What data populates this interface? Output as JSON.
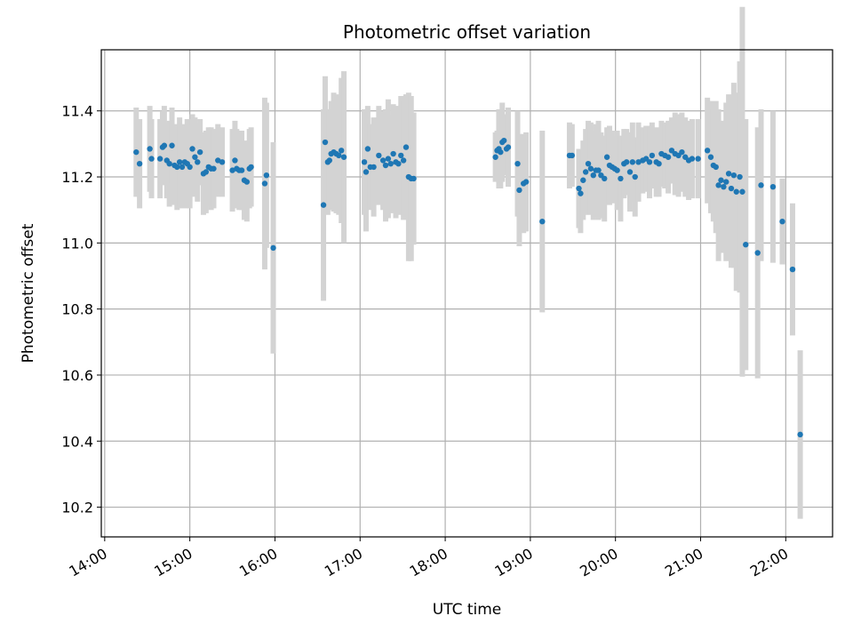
{
  "chart_data": {
    "type": "scatter",
    "title": "Photometric offset variation",
    "xlabel": "UTC time",
    "ylabel": "Photometric offset",
    "grid": true,
    "x_unit": "UTC hours",
    "xlim": [
      13.96,
      22.55
    ],
    "ylim": [
      10.11,
      11.585
    ],
    "x_ticks": [
      14,
      15,
      16,
      17,
      18,
      19,
      20,
      21,
      22
    ],
    "x_tick_labels": [
      "14:00",
      "15:00",
      "16:00",
      "17:00",
      "18:00",
      "19:00",
      "20:00",
      "21:00",
      "22:00"
    ],
    "y_ticks": [
      10.2,
      10.4,
      10.6,
      10.8,
      11.0,
      11.2,
      11.4
    ],
    "y_tick_labels": [
      "10.2",
      "10.4",
      "10.6",
      "10.8",
      "11.0",
      "11.2",
      "11.4"
    ],
    "marker_color": "#1f77b4",
    "errorbar_color": "#d3d3d3",
    "series": [
      {
        "x": [
          14.37,
          14.41,
          14.53,
          14.55,
          14.65,
          14.68,
          14.7,
          14.73,
          14.76,
          14.79,
          14.82,
          14.85,
          14.88,
          14.91,
          14.94,
          14.97,
          15.0,
          15.03,
          15.06,
          15.09,
          15.12,
          15.16,
          15.19,
          15.22,
          15.25,
          15.28,
          15.33,
          15.38,
          15.5,
          15.53,
          15.55,
          15.58,
          15.61,
          15.64,
          15.67,
          15.7,
          15.72,
          15.88,
          15.9,
          15.98
        ],
        "y": [
          11.275,
          11.24,
          11.285,
          11.255,
          11.255,
          11.29,
          11.295,
          11.25,
          11.24,
          11.295,
          11.235,
          11.23,
          11.245,
          11.23,
          11.245,
          11.24,
          11.23,
          11.285,
          11.26,
          11.245,
          11.275,
          11.21,
          11.215,
          11.23,
          11.225,
          11.225,
          11.25,
          11.245,
          11.22,
          11.25,
          11.225,
          11.22,
          11.22,
          11.19,
          11.185,
          11.225,
          11.23,
          11.18,
          11.205,
          10.985
        ],
        "err": [
          0.135,
          0.135,
          0.13,
          0.12,
          0.12,
          0.11,
          0.12,
          0.115,
          0.13,
          0.115,
          0.12,
          0.13,
          0.135,
          0.125,
          0.115,
          0.135,
          0.125,
          0.105,
          0.12,
          0.12,
          0.1,
          0.125,
          0.125,
          0.12,
          0.125,
          0.12,
          0.11,
          0.105,
          0.125,
          0.12,
          0.12,
          0.12,
          0.12,
          0.12,
          0.12,
          0.12,
          0.12,
          0.26,
          0.22,
          0.32
        ]
      },
      {
        "x": [
          16.57,
          16.59,
          16.62,
          16.64,
          16.66,
          16.69,
          16.72,
          16.75,
          16.78,
          16.81,
          17.05,
          17.07,
          17.09,
          17.12,
          17.16,
          17.22,
          17.27,
          17.3,
          17.33,
          17.36,
          17.39,
          17.42,
          17.45,
          17.48,
          17.51,
          17.54,
          17.57,
          17.6,
          17.63
        ],
        "y": [
          11.115,
          11.305,
          11.245,
          11.25,
          11.27,
          11.275,
          11.27,
          11.265,
          11.28,
          11.26,
          11.245,
          11.215,
          11.285,
          11.23,
          11.23,
          11.265,
          11.25,
          11.235,
          11.255,
          11.24,
          11.27,
          11.245,
          11.24,
          11.265,
          11.25,
          11.29,
          11.2,
          11.195,
          11.195
        ],
        "err": [
          0.29,
          0.2,
          0.16,
          0.15,
          0.16,
          0.18,
          0.18,
          0.18,
          0.22,
          0.26,
          0.16,
          0.18,
          0.13,
          0.13,
          0.15,
          0.15,
          0.15,
          0.17,
          0.18,
          0.15,
          0.15,
          0.17,
          0.15,
          0.18,
          0.18,
          0.16,
          0.255,
          0.25,
          0.2
        ]
      },
      {
        "x": [
          18.59,
          18.61,
          18.63,
          18.65,
          18.67,
          18.69,
          18.72,
          18.74,
          18.85,
          18.87,
          18.92,
          18.95,
          19.14
        ],
        "y": [
          11.26,
          11.28,
          11.285,
          11.275,
          11.305,
          11.31,
          11.285,
          11.29,
          11.24,
          11.16,
          11.18,
          11.185,
          11.065
        ],
        "err": [
          0.075,
          0.06,
          0.12,
          0.11,
          0.12,
          0.08,
          0.08,
          0.12,
          0.16,
          0.17,
          0.15,
          0.15,
          0.275
        ]
      },
      {
        "x": [
          19.46,
          19.49,
          19.57,
          19.59,
          19.62,
          19.65,
          19.68,
          19.71,
          19.74,
          19.77,
          19.8,
          19.83,
          19.87,
          19.9,
          19.93,
          19.96,
          19.99,
          20.02,
          20.06,
          20.1,
          20.13,
          20.17,
          20.2,
          20.23,
          20.27,
          20.32,
          20.36,
          20.4,
          20.43,
          20.48,
          20.51,
          20.54,
          20.58,
          20.62,
          20.66,
          20.7,
          20.74,
          20.78,
          20.82,
          20.86,
          20.9,
          20.97
        ],
        "y": [
          11.265,
          11.265,
          11.165,
          11.15,
          11.19,
          11.215,
          11.24,
          11.225,
          11.205,
          11.22,
          11.22,
          11.205,
          11.195,
          11.26,
          11.235,
          11.23,
          11.225,
          11.22,
          11.195,
          11.24,
          11.245,
          11.215,
          11.245,
          11.2,
          11.245,
          11.25,
          11.255,
          11.245,
          11.265,
          11.245,
          11.24,
          11.27,
          11.265,
          11.26,
          11.28,
          11.27,
          11.265,
          11.275,
          11.26,
          11.25,
          11.255,
          11.255
        ],
        "err": [
          0.1,
          0.095,
          0.12,
          0.12,
          0.12,
          0.13,
          0.13,
          0.14,
          0.135,
          0.14,
          0.15,
          0.13,
          0.13,
          0.09,
          0.12,
          0.11,
          0.1,
          0.12,
          0.13,
          0.105,
          0.1,
          0.12,
          0.12,
          0.12,
          0.12,
          0.1,
          0.1,
          0.11,
          0.1,
          0.105,
          0.1,
          0.1,
          0.1,
          0.11,
          0.1,
          0.125,
          0.125,
          0.12,
          0.12,
          0.12,
          0.12,
          0.12
        ]
      },
      {
        "x": [
          21.08,
          21.12,
          21.15,
          21.18,
          21.21,
          21.24,
          21.27,
          21.3,
          21.33,
          21.36,
          21.39,
          21.42,
          21.46,
          21.49,
          21.53,
          21.67,
          21.71,
          21.85,
          21.96,
          22.08,
          22.17
        ],
        "y": [
          11.28,
          11.26,
          11.235,
          11.23,
          11.175,
          11.19,
          11.17,
          11.185,
          11.21,
          11.165,
          11.205,
          11.155,
          11.2,
          11.155,
          10.995,
          10.97,
          11.175,
          11.17,
          11.065,
          10.92,
          10.42
        ],
        "err": [
          0.16,
          0.17,
          0.17,
          0.2,
          0.23,
          0.18,
          0.2,
          0.24,
          0.24,
          0.24,
          0.28,
          0.3,
          0.35,
          0.56,
          0.38,
          0.38,
          0.23,
          0.23,
          0.13,
          0.2,
          0.255
        ]
      }
    ]
  }
}
